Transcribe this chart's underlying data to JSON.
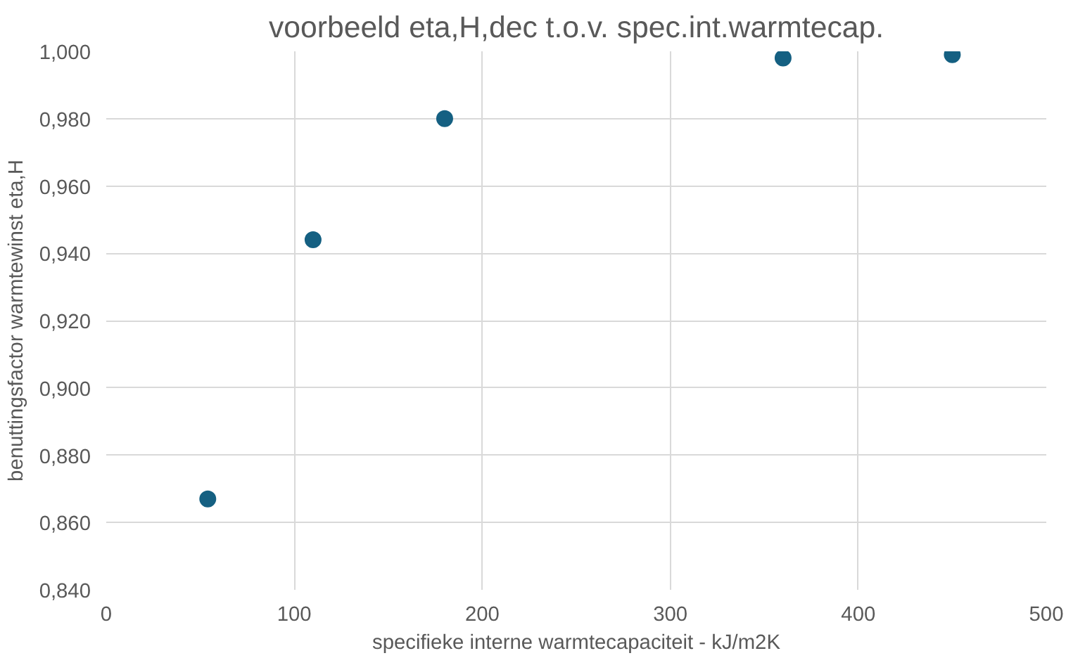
{
  "chart_data": {
    "type": "scatter",
    "title": "voorbeeld eta,H,dec t.o.v. spec.int.warmtecap.",
    "xlabel": "specifieke interne warmtecapaciteit - kJ/m2K",
    "ylabel": "benuttingsfactor warmtewinst eta,H",
    "x": [
      54,
      110,
      180,
      360,
      450
    ],
    "series": [
      {
        "color": "#156082",
        "values": [
          0.867,
          0.944,
          0.98,
          0.998,
          0.999
        ]
      }
    ],
    "xlim": [
      0,
      500
    ],
    "xticks": [
      0,
      100,
      200,
      300,
      400,
      500
    ],
    "ylim": [
      0.84,
      1.0
    ],
    "yticks": [
      {
        "value": 0.84,
        "label": "0,840"
      },
      {
        "value": 0.86,
        "label": "0,860"
      },
      {
        "value": 0.88,
        "label": "0,880"
      },
      {
        "value": 0.9,
        "label": "0,900"
      },
      {
        "value": 0.92,
        "label": "0,920"
      },
      {
        "value": 0.94,
        "label": "0,940"
      },
      {
        "value": 0.96,
        "label": "0,960"
      },
      {
        "value": 0.98,
        "label": "0,980"
      },
      {
        "value": 1.0,
        "label": "1,000"
      }
    ],
    "grid": true,
    "marker": "circle"
  }
}
